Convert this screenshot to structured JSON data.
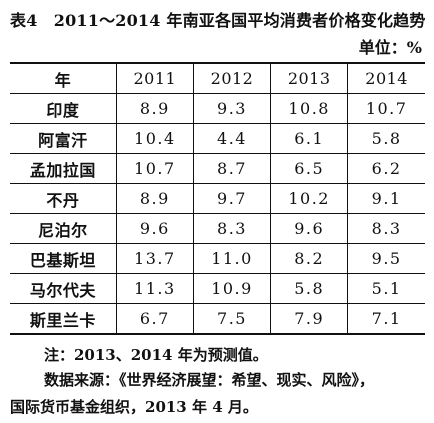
{
  "document": {
    "title": "表4　2011～2014 年南亚各国平均消费者价格变化趋势",
    "unit": "单位：%",
    "note": "注：2013、2014 年为预测值。",
    "source_line1": "数据来源：《世界经济展望：希望、现实、风险》，",
    "source_line2": "国际货币基金组织，2013 年 4 月。"
  },
  "table": {
    "header": [
      "年",
      "2011",
      "2012",
      "2013",
      "2014"
    ],
    "rows": [
      {
        "country": "印度",
        "values": [
          "8.9",
          "9.3",
          "10.8",
          "10.7"
        ]
      },
      {
        "country": "阿富汗",
        "values": [
          "10.4",
          "4.4",
          "6.1",
          "5.8"
        ]
      },
      {
        "country": "孟加拉国",
        "values": [
          "10.7",
          "8.7",
          "6.5",
          "6.2"
        ]
      },
      {
        "country": "不丹",
        "values": [
          "8.9",
          "9.7",
          "10.2",
          "9.1"
        ]
      },
      {
        "country": "尼泊尔",
        "values": [
          "9.6",
          "8.3",
          "9.6",
          "8.3"
        ]
      },
      {
        "country": "巴基斯坦",
        "values": [
          "13.7",
          "11.0",
          "8.2",
          "9.5"
        ]
      },
      {
        "country": "马尔代夫",
        "values": [
          "11.3",
          "10.9",
          "5.8",
          "5.1"
        ]
      },
      {
        "country": "斯里兰卡",
        "values": [
          "6.7",
          "7.5",
          "7.9",
          "7.1"
        ]
      }
    ]
  }
}
